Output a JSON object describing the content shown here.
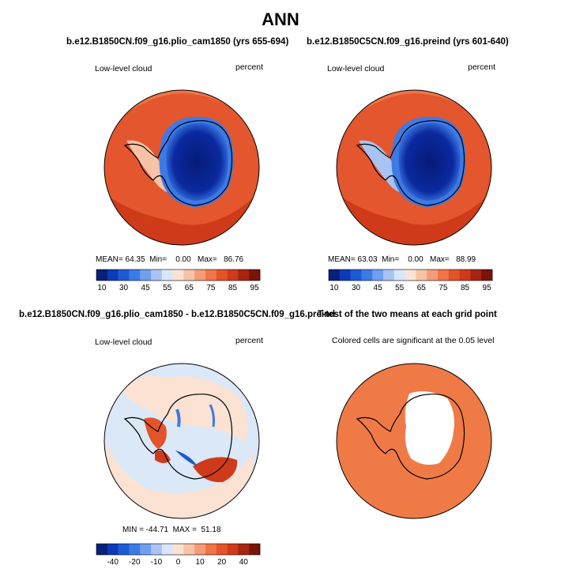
{
  "title": "ANN",
  "panels": [
    {
      "title": "b.e12.B1850CN.f09_g16.plio_cam1850 (yrs 655-694)",
      "left_label": "Low-level cloud",
      "right_label": "percent",
      "stats": {
        "mean_label": "MEAN=",
        "mean": "64.35",
        "min_label": "Min=",
        "min": "0.00",
        "max_label": "Max=",
        "max": "86.76"
      }
    },
    {
      "title": "b.e12.B1850C5CN.f09_g16.preind (yrs 601-640)",
      "left_label": "Low-level cloud",
      "right_label": "percent",
      "stats": {
        "mean_label": "MEAN=",
        "mean": "63.03",
        "min_label": "Min=",
        "min": "0.00",
        "max_label": "Max=",
        "max": "88.99"
      }
    },
    {
      "title": "b.e12.B1850CN.f09_g16.plio_cam1850 - b.e12.B1850C5CN.f09_g16.preind",
      "left_label": "Low-level cloud",
      "right_label": "percent",
      "stats_text": "MIN = -44.71  MAX =  51.18"
    },
    {
      "title": "T-test of the two means at each grid point",
      "subtitle": "Colored cells are significant at the 0.05 level"
    }
  ],
  "chart_data": [
    {
      "type": "heatmap",
      "title": "b.e12.B1850CN.f09_g16.plio_cam1850 (yrs 655-694)",
      "variable": "Low-level cloud",
      "units": "percent",
      "projection": "south polar stereographic",
      "mean": 64.35,
      "min": 0.0,
      "max": 86.76,
      "colorbar_ticks": [
        10,
        30,
        45,
        55,
        65,
        75,
        85,
        95
      ]
    },
    {
      "type": "heatmap",
      "title": "b.e12.B1850C5CN.f09_g16.preind (yrs 601-640)",
      "variable": "Low-level cloud",
      "units": "percent",
      "projection": "south polar stereographic",
      "mean": 63.03,
      "min": 0.0,
      "max": 88.99,
      "colorbar_ticks": [
        10,
        30,
        45,
        55,
        65,
        75,
        85,
        95
      ]
    },
    {
      "type": "heatmap",
      "title": "b.e12.B1850CN.f09_g16.plio_cam1850 - b.e12.B1850C5CN.f09_g16.preind",
      "variable": "Low-level cloud",
      "units": "percent",
      "projection": "south polar stereographic",
      "min": -44.71,
      "max": 51.18,
      "colorbar_ticks": [
        "-40",
        "-20",
        "-10",
        "0",
        "10",
        "20",
        "40"
      ]
    },
    {
      "type": "heatmap",
      "title": "T-test of the two means at each grid point",
      "note": "Colored cells are significant at the 0.05 level",
      "projection": "south polar stereographic",
      "significance_level": 0.05
    }
  ],
  "colors": {
    "abs_palette": [
      "#08207a",
      "#0b3bb8",
      "#1d5ad6",
      "#3c7ae6",
      "#6f9fef",
      "#a8c4f4",
      "#d9e6fa",
      "#fbe2d3",
      "#f7c2a6",
      "#f49c77",
      "#ef7447",
      "#e4532a",
      "#cf3b1a",
      "#a82412",
      "#7b1409"
    ],
    "diff_palette": [
      "#08207a",
      "#0b3bb8",
      "#1d5ad6",
      "#3c7ae6",
      "#6f9fef",
      "#a8c4f4",
      "#d9e6fa",
      "#fbe2d3",
      "#f7c2a6",
      "#f49c77",
      "#ef7447",
      "#e4532a",
      "#cf3b1a",
      "#a82412",
      "#7b1409"
    ],
    "ocean_abs": "#e4562d",
    "ocean_abs_dark": "#cf3b1a",
    "continent": "#0b1f8a",
    "diff_bg": "#dbe8f8",
    "ttest_fill": "#f07a46"
  }
}
